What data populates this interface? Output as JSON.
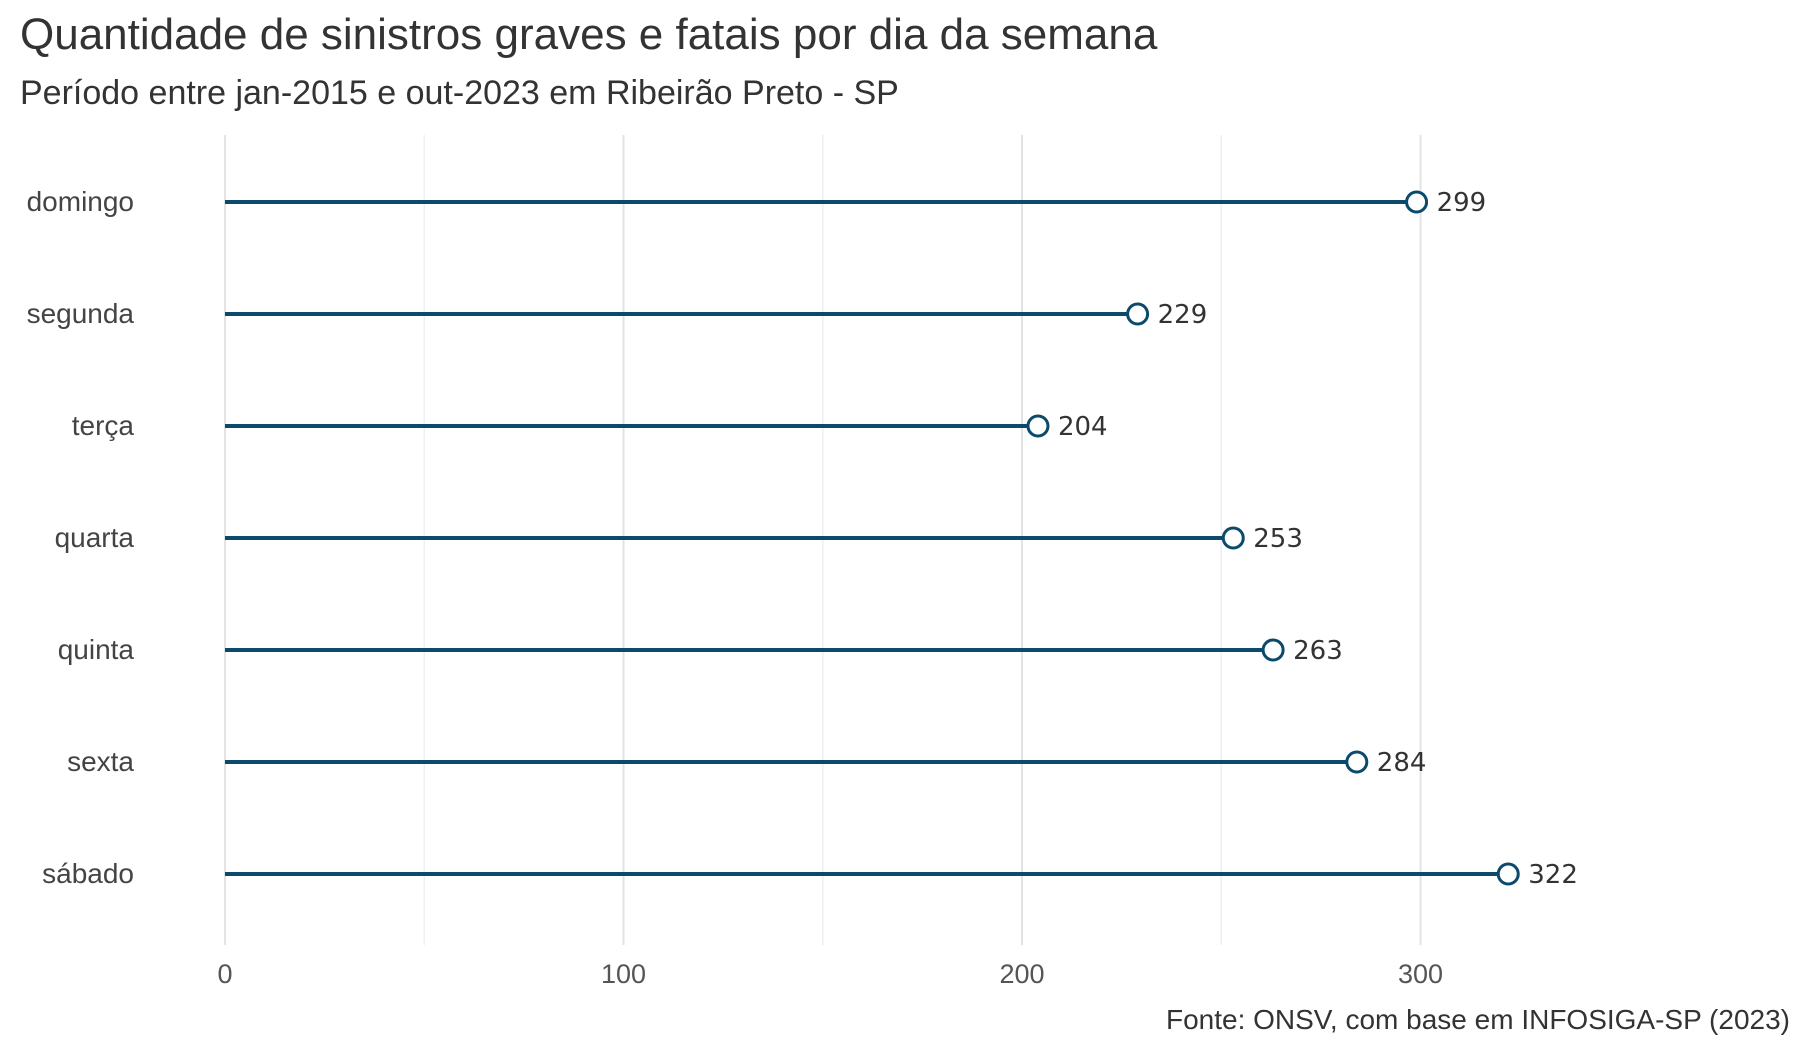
{
  "chart_data": {
    "type": "lollipop",
    "title": "Quantidade de sinistros graves e fatais por dia da semana",
    "subtitle": "Período entre jan-2015 e out-2023 em Ribeirão Preto - SP",
    "caption": "Fonte: ONSV, com base em INFOSIGA-SP (2023)",
    "xlabel": "",
    "ylabel": "",
    "categories": [
      "domingo",
      "segunda",
      "terça",
      "quarta",
      "quinta",
      "sexta",
      "sábado"
    ],
    "values": [
      299,
      229,
      204,
      253,
      263,
      284,
      322
    ],
    "x_ticks": [
      0,
      100,
      200,
      300
    ],
    "xlim": [
      0,
      338
    ],
    "grid": true,
    "legend": "none",
    "color": "#0b4a6b"
  }
}
